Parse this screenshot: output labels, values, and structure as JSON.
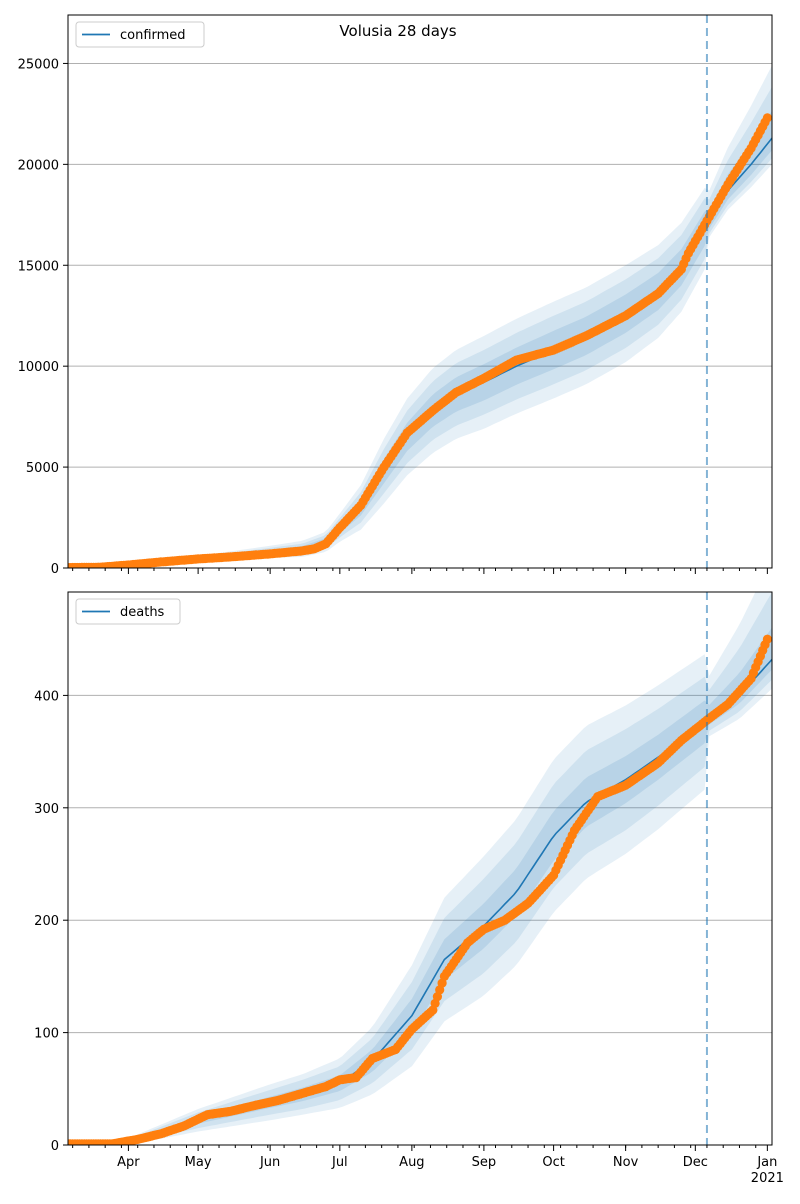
{
  "title": "Volusia 28 days",
  "colors": {
    "model_line": "#1f77b4",
    "observed": "#ff7f0e",
    "band": "#1f77b4",
    "grid": "#b0b0b0",
    "divider": "#1f77b4"
  },
  "chart_data": [
    {
      "type": "line",
      "id": "confirmed",
      "legend": "confirmed",
      "legend_position": "top-left",
      "grid": "horizontal",
      "xlim": [
        "2020-03-06",
        "2021-01-03"
      ],
      "ylim": [
        0,
        27400
      ],
      "yticks": [
        0,
        5000,
        10000,
        15000,
        20000,
        25000
      ],
      "forecast_start": "2020-12-06",
      "model": {
        "dates": [
          "2020-03-06",
          "2020-04-01",
          "2020-05-01",
          "2020-06-01",
          "2020-06-15",
          "2020-06-25",
          "2020-07-01",
          "2020-07-10",
          "2020-07-20",
          "2020-07-30",
          "2020-08-10",
          "2020-08-20",
          "2020-09-01",
          "2020-09-15",
          "2020-10-01",
          "2020-10-15",
          "2020-11-01",
          "2020-11-15",
          "2020-11-25",
          "2020-12-06",
          "2020-12-15",
          "2020-12-25",
          "2021-01-03"
        ],
        "values": [
          10,
          150,
          450,
          800,
          950,
          1300,
          2000,
          3000,
          4800,
          6500,
          7800,
          8600,
          9200,
          10000,
          10800,
          11500,
          12600,
          13700,
          14900,
          17000,
          18700,
          20000,
          21300
        ],
        "band_widths": [
          [
            0,
            60,
            150,
            300,
            400,
            500,
            700,
            1100,
            1600,
            1900,
            2100,
            2200,
            2300,
            2350,
            2400,
            2400,
            2400,
            2300,
            2200,
            2000,
            1500,
            1200,
            900
          ],
          [
            0,
            40,
            100,
            200,
            260,
            330,
            480,
            750,
            1100,
            1300,
            1450,
            1550,
            1600,
            1650,
            1700,
            1700,
            1700,
            1650,
            1600,
            1500,
            1100,
            900,
            650
          ],
          [
            0,
            20,
            50,
            100,
            140,
            180,
            260,
            400,
            600,
            700,
            800,
            850,
            900,
            920,
            950,
            950,
            950,
            920,
            900,
            850,
            650,
            500,
            350
          ]
        ],
        "forecast_band_lower": [
          1300,
          1000,
          600
        ],
        "forecast_band_upper": [
          2400,
          1700,
          900
        ]
      },
      "observed": {
        "dates": [
          "2020-03-06",
          "2020-03-20",
          "2020-04-01",
          "2020-04-15",
          "2020-05-01",
          "2020-05-15",
          "2020-06-01",
          "2020-06-15",
          "2020-06-20",
          "2020-06-25",
          "2020-07-01",
          "2020-07-10",
          "2020-07-20",
          "2020-07-30",
          "2020-08-10",
          "2020-08-20",
          "2020-09-01",
          "2020-09-15",
          "2020-10-01",
          "2020-10-15",
          "2020-11-01",
          "2020-11-15",
          "2020-11-25",
          "2020-11-28",
          "2020-12-01",
          "2020-12-06",
          "2020-12-15",
          "2020-12-25",
          "2021-01-01"
        ],
        "values": [
          20,
          40,
          150,
          300,
          450,
          550,
          700,
          850,
          950,
          1200,
          2000,
          3100,
          5000,
          6700,
          7800,
          8700,
          9400,
          10300,
          10800,
          11500,
          12500,
          13600,
          14800,
          15600,
          16200,
          17200,
          19000,
          20800,
          22300
        ]
      }
    },
    {
      "type": "line",
      "id": "deaths",
      "legend": "deaths",
      "legend_position": "top-left",
      "grid": "horizontal",
      "xlim": [
        "2020-03-06",
        "2021-01-03"
      ],
      "ylim": [
        0,
        492
      ],
      "yticks": [
        0,
        100,
        200,
        300,
        400
      ],
      "forecast_start": "2020-12-06",
      "xticks": [
        {
          "date": "2020-04-01",
          "label": "Apr"
        },
        {
          "date": "2020-05-01",
          "label": "May"
        },
        {
          "date": "2020-06-01",
          "label": "Jun"
        },
        {
          "date": "2020-07-01",
          "label": "Jul"
        },
        {
          "date": "2020-08-01",
          "label": "Aug"
        },
        {
          "date": "2020-09-01",
          "label": "Sep"
        },
        {
          "date": "2020-10-01",
          "label": "Oct"
        },
        {
          "date": "2020-11-01",
          "label": "Nov"
        },
        {
          "date": "2020-12-01",
          "label": "Dec"
        },
        {
          "date": "2021-01-01",
          "label": "Jan",
          "sublabel": "2021"
        }
      ],
      "model": {
        "dates": [
          "2020-03-06",
          "2020-04-01",
          "2020-05-01",
          "2020-06-01",
          "2020-06-15",
          "2020-07-01",
          "2020-07-15",
          "2020-08-01",
          "2020-08-15",
          "2020-09-01",
          "2020-09-15",
          "2020-10-01",
          "2020-10-15",
          "2020-11-01",
          "2020-11-15",
          "2020-12-06",
          "2020-12-20",
          "2021-01-03"
        ],
        "values": [
          1,
          3,
          22,
          38,
          45,
          55,
          75,
          115,
          165,
          195,
          225,
          275,
          305,
          325,
          345,
          378,
          400,
          432
        ],
        "band_widths": [
          [
            0,
            3,
            10,
            16,
            18,
            22,
            30,
            45,
            55,
            62,
            65,
            68,
            68,
            66,
            64,
            60,
            55,
            50
          ],
          [
            0,
            2,
            7,
            11,
            13,
            15,
            20,
            30,
            37,
            42,
            44,
            46,
            46,
            45,
            43,
            40,
            36,
            32
          ],
          [
            0,
            1,
            3,
            5,
            6,
            7,
            10,
            15,
            18,
            20,
            21,
            22,
            22,
            21,
            20,
            19,
            16,
            14
          ]
        ],
        "forecast_band_lower": [
          26,
          18,
          9
        ],
        "forecast_band_upper": [
          60,
          40,
          19
        ]
      },
      "observed": {
        "dates": [
          "2020-03-06",
          "2020-03-25",
          "2020-04-05",
          "2020-04-15",
          "2020-04-25",
          "2020-05-05",
          "2020-05-15",
          "2020-05-25",
          "2020-06-05",
          "2020-06-15",
          "2020-06-25",
          "2020-07-01",
          "2020-07-08",
          "2020-07-15",
          "2020-07-25",
          "2020-08-01",
          "2020-08-10",
          "2020-08-15",
          "2020-08-25",
          "2020-09-01",
          "2020-09-10",
          "2020-09-20",
          "2020-10-01",
          "2020-10-10",
          "2020-10-20",
          "2020-11-01",
          "2020-11-15",
          "2020-11-25",
          "2020-12-06",
          "2020-12-15",
          "2020-12-25",
          "2021-01-01"
        ],
        "values": [
          1,
          1,
          5,
          10,
          17,
          27,
          30,
          35,
          40,
          46,
          52,
          58,
          60,
          77,
          85,
          103,
          120,
          150,
          180,
          192,
          200,
          215,
          240,
          280,
          310,
          320,
          340,
          360,
          378,
          392,
          415,
          450
        ]
      }
    }
  ]
}
